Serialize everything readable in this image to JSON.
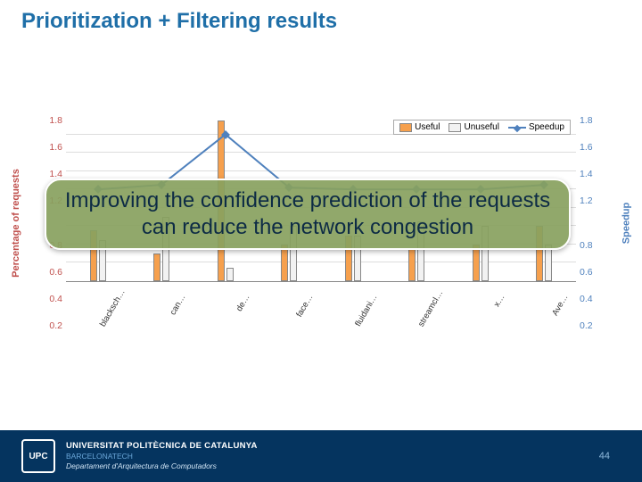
{
  "title": "Prioritization + Filtering results",
  "chart": {
    "type": "bar+line",
    "ylabel_left": "Percentage of requests",
    "ylabel_right": "Speedup",
    "yticks": [
      "1.8",
      "1.6",
      "1.4",
      "1.2",
      "",
      "0.8",
      "0.6",
      "0.4",
      "0.2"
    ],
    "categories": [
      "blacksch…",
      "can…",
      "de…",
      "face…",
      "fluidani…",
      "streamcl…",
      "x…",
      "Ave…"
    ],
    "series": [
      {
        "name": "Useful",
        "color": "#f6a04d",
        "values": [
          0.55,
          0.3,
          1.75,
          0.4,
          0.5,
          0.35,
          0.4,
          0.6
        ]
      },
      {
        "name": "Unuseful",
        "color": "#f2f2f2",
        "values": [
          0.45,
          0.7,
          0.15,
          0.6,
          0.5,
          0.65,
          0.6,
          0.4
        ]
      }
    ],
    "speedup": {
      "name": "Speedup",
      "color": "#4f81bd",
      "values": [
        1.0,
        1.05,
        1.6,
        1.02,
        1.0,
        1.0,
        1.0,
        1.05
      ]
    },
    "ymax": 1.8,
    "background_color": "#ffffff",
    "grid_color": "#dddddd"
  },
  "callout": {
    "text": "Improving the confidence prediction of the requests can reduce the network congestion",
    "bg": "#88a15e",
    "text_color": "#0d2b45",
    "fontsize": 24
  },
  "footer": {
    "logo_text": "UPC",
    "line1": "UNIVERSITAT POLITÈCNICA DE CATALUNYA",
    "line2": "BARCELONATECH",
    "line3": "Departament d'Arquitectura de Computadors",
    "bg": "#05345f",
    "slide_number": "44"
  }
}
